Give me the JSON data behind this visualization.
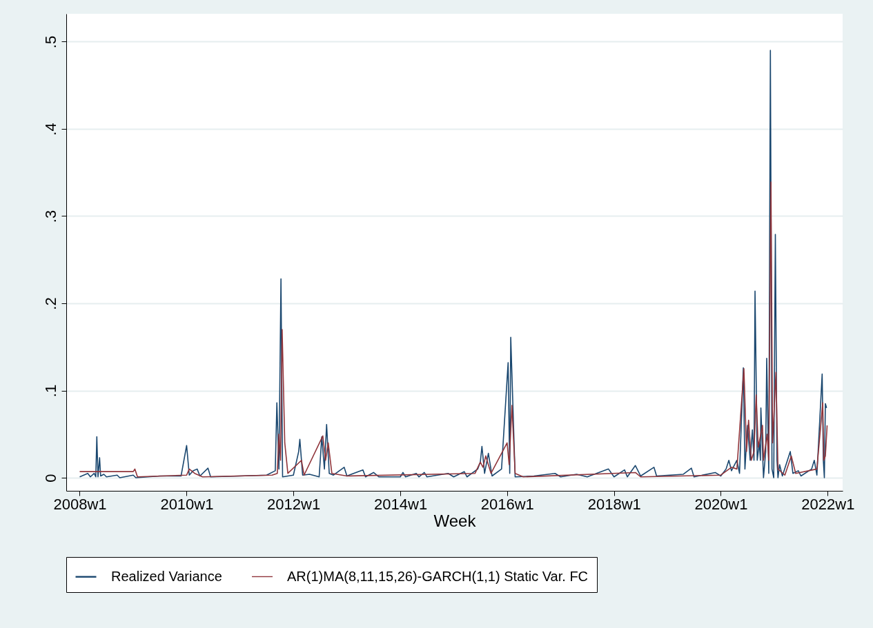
{
  "chart_data": {
    "type": "line",
    "xlabel": "Week",
    "xlim": [
      "2007-10-01",
      "2022-04-13"
    ],
    "xticks": [
      {
        "value": "2008-01-01",
        "label": "2008w1"
      },
      {
        "value": "2010-01-01",
        "label": "2010w1"
      },
      {
        "value": "2012-01-01",
        "label": "2012w1"
      },
      {
        "value": "2014-01-01",
        "label": "2014w1"
      },
      {
        "value": "2016-01-01",
        "label": "2016w1"
      },
      {
        "value": "2018-01-01",
        "label": "2018w1"
      },
      {
        "value": "2020-01-01",
        "label": "2020w1"
      },
      {
        "value": "2022-01-01",
        "label": "2022w1"
      }
    ],
    "ylim": [
      -0.015,
      0.532
    ],
    "yticks": [
      0,
      {
        "value": 0.1,
        "label": ".1"
      },
      {
        "value": 0.2,
        "label": ".2"
      },
      {
        "value": 0.3,
        "label": ".3"
      },
      {
        "value": 0.4,
        "label": ".4"
      },
      {
        "value": 0.5,
        "label": ".5"
      }
    ],
    "grid": "y",
    "legend": "bottom",
    "series": [
      {
        "name": "Realized Variance",
        "color": "#1a476f",
        "x": [
          "2008-01-01",
          "2008-02-25",
          "2008-03-14",
          "2008-04-09",
          "2008-04-20",
          "2008-04-27",
          "2008-05-05",
          "2008-05-16",
          "2008-05-23",
          "2008-06-14",
          "2008-07-02",
          "2008-09-13",
          "2008-10-01",
          "2009-01-01",
          "2009-01-19",
          "2009-07-02",
          "2009-11-24",
          "2010-01-01",
          "2010-01-19",
          "2010-02-14",
          "2010-03-14",
          "2010-04-02",
          "2010-05-27",
          "2010-06-14",
          "2011-01-01",
          "2011-07-02",
          "2011-08-30",
          "2011-09-10",
          "2011-09-24",
          "2011-10-08",
          "2011-10-19",
          "2012-01-01",
          "2012-02-06",
          "2012-02-14",
          "2012-03-04",
          "2012-04-20",
          "2012-06-25",
          "2012-07-13",
          "2012-07-31",
          "2012-08-15",
          "2012-09-02",
          "2012-10-01",
          "2012-12-13",
          "2013-01-01",
          "2013-04-20",
          "2013-05-08",
          "2013-07-02",
          "2013-08-08",
          "2014-01-01",
          "2014-01-19",
          "2014-02-06",
          "2014-04-20",
          "2014-05-08",
          "2014-06-14",
          "2014-07-02",
          "2014-11-24",
          "2015-01-01",
          "2015-03-14",
          "2015-04-02",
          "2015-06-14",
          "2015-07-02",
          "2015-07-13",
          "2015-07-31",
          "2015-08-26",
          "2015-09-20",
          "2015-11-24",
          "2016-01-08",
          "2016-01-19",
          "2016-01-26",
          "2016-02-25",
          "2016-07-02",
          "2016-11-24",
          "2017-01-01",
          "2017-04-20",
          "2017-07-02",
          "2017-11-24",
          "2018-01-01",
          "2018-03-14",
          "2018-04-02",
          "2018-05-27",
          "2018-07-02",
          "2018-10-01",
          "2018-10-19",
          "2019-04-20",
          "2019-06-14",
          "2019-07-02",
          "2019-11-24",
          "2020-01-01",
          "2020-02-06",
          "2020-02-25",
          "2020-03-14",
          "2020-04-20",
          "2020-05-08",
          "2020-06-03",
          "2020-06-14",
          "2020-07-02",
          "2020-07-20",
          "2020-08-04",
          "2020-08-15",
          "2020-08-22",
          "2020-09-06",
          "2020-09-20",
          "2020-09-28",
          "2020-10-01",
          "2020-10-19",
          "2020-11-03",
          "2020-11-10",
          "2020-11-24",
          "2020-12-05",
          "2020-12-16",
          "2020-12-28",
          "2021-01-08",
          "2021-01-19",
          "2021-01-26",
          "2021-02-06",
          "2021-02-25",
          "2021-04-20",
          "2021-05-08",
          "2021-06-14",
          "2021-07-02",
          "2021-09-13",
          "2021-10-01",
          "2021-10-19",
          "2021-11-24",
          "2021-12-02",
          "2021-12-09",
          "2021-12-16",
          "2021-12-24"
        ],
        "values": [
          0.001,
          0.005,
          0.001,
          0.005,
          0.001,
          0.047,
          0.001,
          0.023,
          0.002,
          0.004,
          0.001,
          0.003,
          0,
          0.003,
          0,
          0.002,
          0.002,
          0.037,
          0.003,
          0.008,
          0.01,
          0.002,
          0.011,
          0.001,
          0.002,
          0.003,
          0.008,
          0.086,
          0.01,
          0.228,
          0.001,
          0.003,
          0.03,
          0.044,
          0.003,
          0.004,
          0.001,
          0.047,
          0.01,
          0.061,
          0.005,
          0.003,
          0.012,
          0.002,
          0.009,
          0.001,
          0.006,
          0.001,
          0.001,
          0.006,
          0.001,
          0.005,
          0.001,
          0.006,
          0.001,
          0.005,
          0.001,
          0.007,
          0.001,
          0.01,
          0.018,
          0.036,
          0.005,
          0.028,
          0.002,
          0.01,
          0.132,
          0.005,
          0.161,
          0.001,
          0.002,
          0.005,
          0.001,
          0.004,
          0.001,
          0.01,
          0.001,
          0.009,
          0.001,
          0.014,
          0.002,
          0.012,
          0.002,
          0.004,
          0.011,
          0.001,
          0.006,
          0.002,
          0.01,
          0.02,
          0.008,
          0.02,
          0.005,
          0.126,
          0.01,
          0.06,
          0.02,
          0.055,
          0.02,
          0.214,
          0.02,
          0.04,
          0.02,
          0.08,
          0,
          0.03,
          0.137,
          0.005,
          0.49,
          0.01,
          0,
          0.279,
          0.02,
          0,
          0.015,
          0.002,
          0.03,
          0.005,
          0.008,
          0.002,
          0.01,
          0.02,
          0.003,
          0.119,
          0.02,
          0,
          0.085,
          0.08
        ]
      },
      {
        "name": "AR(1)MA(8,11,15,26)-GARCH(1,1) Static Var. FC",
        "color": "#90353b",
        "x": [
          "2008-01-01",
          "2009-01-01",
          "2009-01-12",
          "2009-01-30",
          "2010-01-01",
          "2010-01-19",
          "2010-02-25",
          "2010-04-20",
          "2011-08-08",
          "2011-09-13",
          "2011-09-24",
          "2011-10-05",
          "2011-10-16",
          "2011-11-03",
          "2011-11-24",
          "2012-02-25",
          "2012-03-14",
          "2012-07-20",
          "2012-08-08",
          "2012-08-26",
          "2012-09-20",
          "2013-01-01",
          "2015-05-27",
          "2015-07-02",
          "2015-07-20",
          "2015-08-08",
          "2015-09-13",
          "2016-01-01",
          "2016-01-15",
          "2016-02-03",
          "2016-02-25",
          "2016-04-20",
          "2018-05-27",
          "2018-07-02",
          "2020-01-01",
          "2020-03-14",
          "2020-04-20",
          "2020-06-07",
          "2020-06-25",
          "2020-07-09",
          "2020-07-27",
          "2020-08-15",
          "2020-08-30",
          "2020-09-13",
          "2020-10-12",
          "2020-10-19",
          "2020-11-13",
          "2020-11-24",
          "2020-12-09",
          "2020-12-20",
          "2021-01-12",
          "2021-01-26",
          "2021-03-14",
          "2021-04-27",
          "2021-05-27",
          "2021-10-19",
          "2021-11-28",
          "2021-12-05",
          "2021-12-16",
          "2021-12-28"
        ],
        "values": [
          0.007,
          0.007,
          0.01,
          0.001,
          0.003,
          0.01,
          0.005,
          0.001,
          0.003,
          0.005,
          0.05,
          0.02,
          0.17,
          0.04,
          0.005,
          0.02,
          0.003,
          0.048,
          0.02,
          0.04,
          0.005,
          0.002,
          0.005,
          0.018,
          0.012,
          0.025,
          0.005,
          0.04,
          0.015,
          0.083,
          0.005,
          0.001,
          0.006,
          0.001,
          0.003,
          0.012,
          0.01,
          0.125,
          0.03,
          0.066,
          0.02,
          0.03,
          0.095,
          0.035,
          0.06,
          0.02,
          0.05,
          0.02,
          0.339,
          0.04,
          0.121,
          0.01,
          0.003,
          0.025,
          0.005,
          0.01,
          0.086,
          0.02,
          0.025,
          0.06
        ]
      }
    ]
  }
}
